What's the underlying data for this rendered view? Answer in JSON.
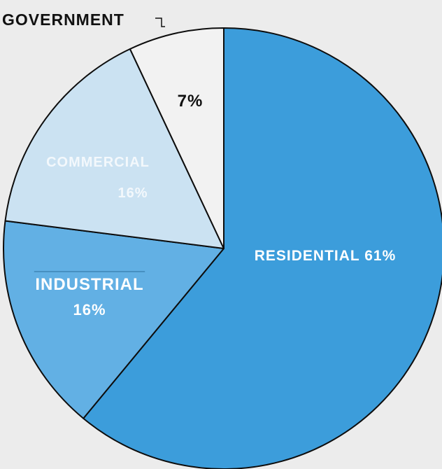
{
  "chart_data": {
    "type": "pie",
    "start_angle_deg": 0,
    "direction": "clockwise",
    "slices": [
      {
        "label": "RESIDENTIAL",
        "value": 61,
        "value_label": "61%",
        "color": "#3c9ddb",
        "label_color": "#ffffff"
      },
      {
        "label": "INDUSTRIAL",
        "value": 16,
        "value_label": "16%",
        "color": "#62b0e4",
        "label_color": "#ffffff"
      },
      {
        "label": "COMMERCIAL",
        "value": 16,
        "value_label": "16%",
        "color": "#cbe2f2",
        "label_color": "#f3f8fc"
      },
      {
        "label": "GOVERNMENT",
        "value": 7,
        "value_label": "7%",
        "color": "#f2f2f2",
        "label_color": "#111111"
      }
    ],
    "outline_color": "#0d0d0d",
    "background_color": "#ececec"
  }
}
